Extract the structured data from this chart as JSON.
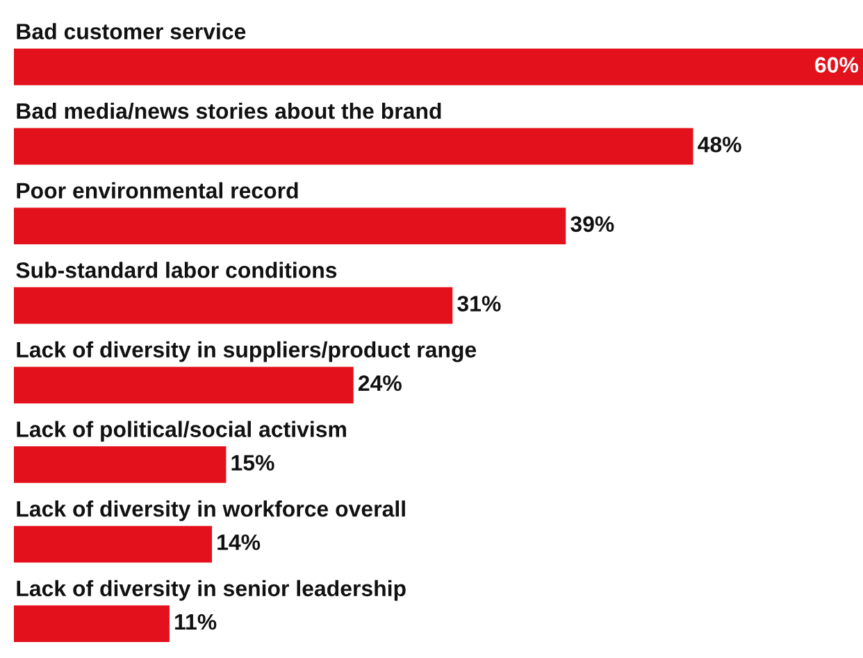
{
  "chart_data": {
    "type": "bar",
    "orientation": "horizontal",
    "categories": [
      "Bad customer service",
      "Bad media/news stories about the brand",
      "Poor environmental record",
      "Sub-standard labor conditions",
      "Lack of diversity in suppliers/product range",
      "Lack of political/social activism",
      "Lack of diversity in workforce overall",
      "Lack of diversity in senior leadership"
    ],
    "series": [
      {
        "color": "#e3111b",
        "values": [
          60,
          48,
          39,
          31,
          24,
          15,
          14,
          11
        ],
        "value_labels": [
          "60%",
          "48%",
          "39%",
          "31%",
          "24%",
          "15%",
          "14%",
          "11%"
        ]
      }
    ]
  }
}
